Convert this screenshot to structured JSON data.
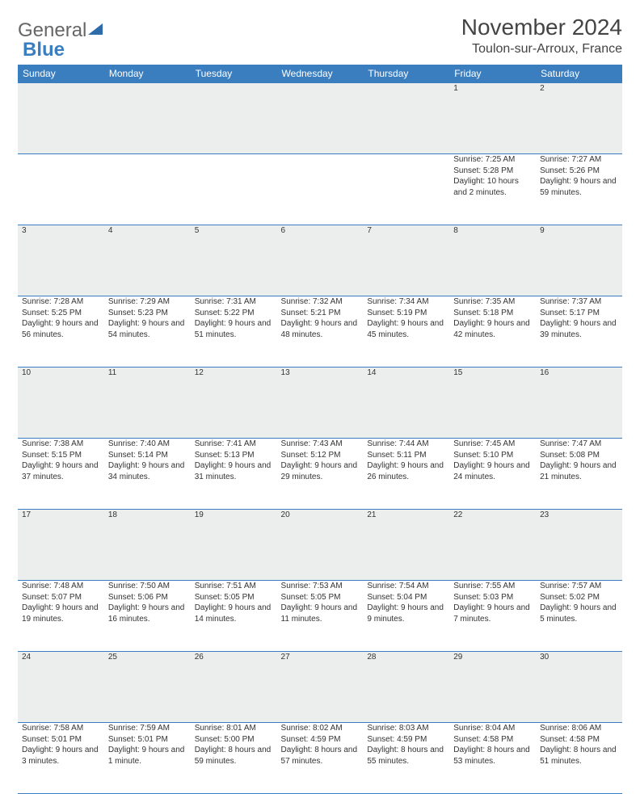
{
  "brand": {
    "part1": "General",
    "part2": "Blue"
  },
  "title": {
    "month": "November 2024",
    "location": "Toulon-sur-Arroux, France"
  },
  "colors": {
    "header_bg": "#3b7ec0",
    "header_text": "#ffffff",
    "daynum_bg": "#eceded",
    "border": "#3b7ec0",
    "body_text": "#333333",
    "page_bg": "#ffffff"
  },
  "fonts": {
    "title_size": 28,
    "location_size": 16,
    "weekday_size": 12,
    "cell_size": 10
  },
  "weekdays": [
    "Sunday",
    "Monday",
    "Tuesday",
    "Wednesday",
    "Thursday",
    "Friday",
    "Saturday"
  ],
  "weeks": [
    [
      null,
      null,
      null,
      null,
      null,
      {
        "n": "1",
        "sunrise": "Sunrise: 7:25 AM",
        "sunset": "Sunset: 5:28 PM",
        "daylight": "Daylight: 10 hours and 2 minutes."
      },
      {
        "n": "2",
        "sunrise": "Sunrise: 7:27 AM",
        "sunset": "Sunset: 5:26 PM",
        "daylight": "Daylight: 9 hours and 59 minutes."
      }
    ],
    [
      {
        "n": "3",
        "sunrise": "Sunrise: 7:28 AM",
        "sunset": "Sunset: 5:25 PM",
        "daylight": "Daylight: 9 hours and 56 minutes."
      },
      {
        "n": "4",
        "sunrise": "Sunrise: 7:29 AM",
        "sunset": "Sunset: 5:23 PM",
        "daylight": "Daylight: 9 hours and 54 minutes."
      },
      {
        "n": "5",
        "sunrise": "Sunrise: 7:31 AM",
        "sunset": "Sunset: 5:22 PM",
        "daylight": "Daylight: 9 hours and 51 minutes."
      },
      {
        "n": "6",
        "sunrise": "Sunrise: 7:32 AM",
        "sunset": "Sunset: 5:21 PM",
        "daylight": "Daylight: 9 hours and 48 minutes."
      },
      {
        "n": "7",
        "sunrise": "Sunrise: 7:34 AM",
        "sunset": "Sunset: 5:19 PM",
        "daylight": "Daylight: 9 hours and 45 minutes."
      },
      {
        "n": "8",
        "sunrise": "Sunrise: 7:35 AM",
        "sunset": "Sunset: 5:18 PM",
        "daylight": "Daylight: 9 hours and 42 minutes."
      },
      {
        "n": "9",
        "sunrise": "Sunrise: 7:37 AM",
        "sunset": "Sunset: 5:17 PM",
        "daylight": "Daylight: 9 hours and 39 minutes."
      }
    ],
    [
      {
        "n": "10",
        "sunrise": "Sunrise: 7:38 AM",
        "sunset": "Sunset: 5:15 PM",
        "daylight": "Daylight: 9 hours and 37 minutes."
      },
      {
        "n": "11",
        "sunrise": "Sunrise: 7:40 AM",
        "sunset": "Sunset: 5:14 PM",
        "daylight": "Daylight: 9 hours and 34 minutes."
      },
      {
        "n": "12",
        "sunrise": "Sunrise: 7:41 AM",
        "sunset": "Sunset: 5:13 PM",
        "daylight": "Daylight: 9 hours and 31 minutes."
      },
      {
        "n": "13",
        "sunrise": "Sunrise: 7:43 AM",
        "sunset": "Sunset: 5:12 PM",
        "daylight": "Daylight: 9 hours and 29 minutes."
      },
      {
        "n": "14",
        "sunrise": "Sunrise: 7:44 AM",
        "sunset": "Sunset: 5:11 PM",
        "daylight": "Daylight: 9 hours and 26 minutes."
      },
      {
        "n": "15",
        "sunrise": "Sunrise: 7:45 AM",
        "sunset": "Sunset: 5:10 PM",
        "daylight": "Daylight: 9 hours and 24 minutes."
      },
      {
        "n": "16",
        "sunrise": "Sunrise: 7:47 AM",
        "sunset": "Sunset: 5:08 PM",
        "daylight": "Daylight: 9 hours and 21 minutes."
      }
    ],
    [
      {
        "n": "17",
        "sunrise": "Sunrise: 7:48 AM",
        "sunset": "Sunset: 5:07 PM",
        "daylight": "Daylight: 9 hours and 19 minutes."
      },
      {
        "n": "18",
        "sunrise": "Sunrise: 7:50 AM",
        "sunset": "Sunset: 5:06 PM",
        "daylight": "Daylight: 9 hours and 16 minutes."
      },
      {
        "n": "19",
        "sunrise": "Sunrise: 7:51 AM",
        "sunset": "Sunset: 5:05 PM",
        "daylight": "Daylight: 9 hours and 14 minutes."
      },
      {
        "n": "20",
        "sunrise": "Sunrise: 7:53 AM",
        "sunset": "Sunset: 5:05 PM",
        "daylight": "Daylight: 9 hours and 11 minutes."
      },
      {
        "n": "21",
        "sunrise": "Sunrise: 7:54 AM",
        "sunset": "Sunset: 5:04 PM",
        "daylight": "Daylight: 9 hours and 9 minutes."
      },
      {
        "n": "22",
        "sunrise": "Sunrise: 7:55 AM",
        "sunset": "Sunset: 5:03 PM",
        "daylight": "Daylight: 9 hours and 7 minutes."
      },
      {
        "n": "23",
        "sunrise": "Sunrise: 7:57 AM",
        "sunset": "Sunset: 5:02 PM",
        "daylight": "Daylight: 9 hours and 5 minutes."
      }
    ],
    [
      {
        "n": "24",
        "sunrise": "Sunrise: 7:58 AM",
        "sunset": "Sunset: 5:01 PM",
        "daylight": "Daylight: 9 hours and 3 minutes."
      },
      {
        "n": "25",
        "sunrise": "Sunrise: 7:59 AM",
        "sunset": "Sunset: 5:01 PM",
        "daylight": "Daylight: 9 hours and 1 minute."
      },
      {
        "n": "26",
        "sunrise": "Sunrise: 8:01 AM",
        "sunset": "Sunset: 5:00 PM",
        "daylight": "Daylight: 8 hours and 59 minutes."
      },
      {
        "n": "27",
        "sunrise": "Sunrise: 8:02 AM",
        "sunset": "Sunset: 4:59 PM",
        "daylight": "Daylight: 8 hours and 57 minutes."
      },
      {
        "n": "28",
        "sunrise": "Sunrise: 8:03 AM",
        "sunset": "Sunset: 4:59 PM",
        "daylight": "Daylight: 8 hours and 55 minutes."
      },
      {
        "n": "29",
        "sunrise": "Sunrise: 8:04 AM",
        "sunset": "Sunset: 4:58 PM",
        "daylight": "Daylight: 8 hours and 53 minutes."
      },
      {
        "n": "30",
        "sunrise": "Sunrise: 8:06 AM",
        "sunset": "Sunset: 4:58 PM",
        "daylight": "Daylight: 8 hours and 51 minutes."
      }
    ]
  ]
}
